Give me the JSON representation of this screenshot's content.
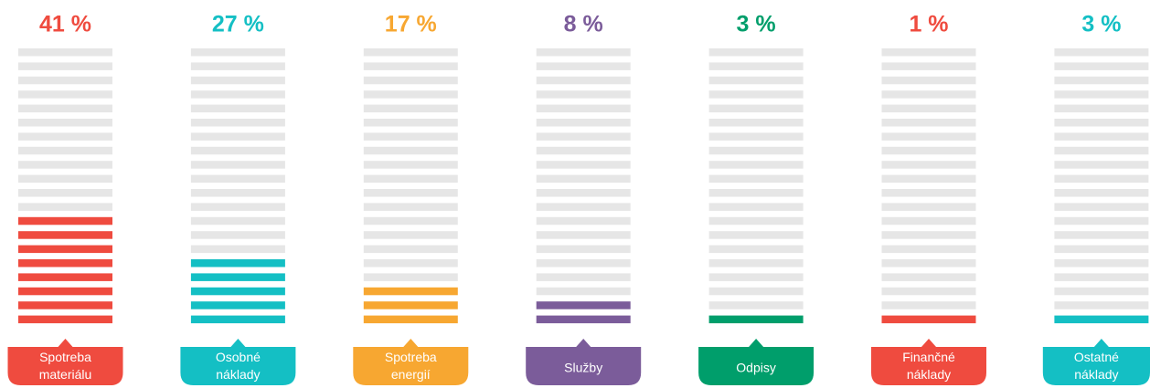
{
  "chart_data": {
    "type": "bar",
    "categories": [
      "Spotreba materiálu",
      "Osobné náklady",
      "Spotreba energií",
      "Služby",
      "Odpisy",
      "Finančné náklady",
      "Ostatné náklady"
    ],
    "values": [
      41,
      27,
      17,
      8,
      3,
      1,
      3
    ],
    "value_labels": [
      "41 %",
      "27 %",
      "17 %",
      "8 %",
      "3 %",
      "1 %",
      "3 %"
    ],
    "colors": [
      "#ef4b3f",
      "#14bfc4",
      "#f7a731",
      "#7b5c9a",
      "#009e6b",
      "#ef4b3f",
      "#14bfc4"
    ],
    "ylim": [
      0,
      100
    ]
  }
}
